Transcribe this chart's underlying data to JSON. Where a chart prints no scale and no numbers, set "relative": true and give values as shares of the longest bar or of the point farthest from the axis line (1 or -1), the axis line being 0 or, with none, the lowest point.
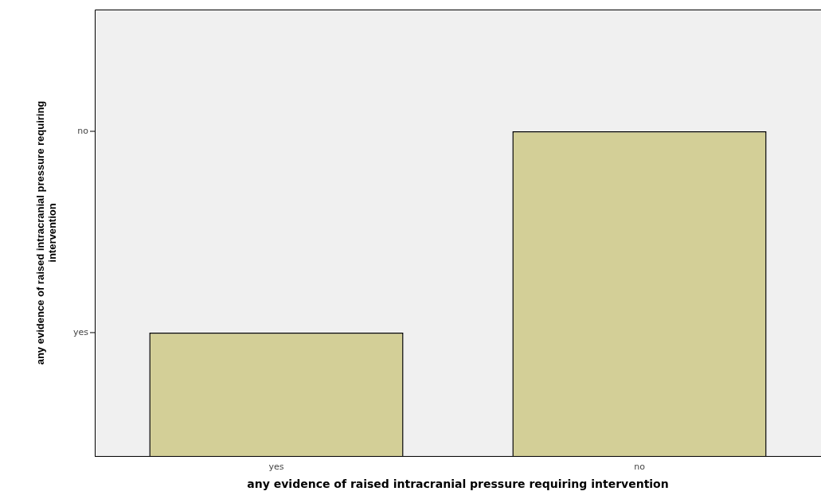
{
  "chart_data": {
    "type": "bar",
    "xlabel": "any evidence of raised intracranial pressure requiring intervention",
    "ylabel": "any evidence of raised intracranial pressure requiring intervention",
    "categories": [
      "yes",
      "no"
    ],
    "values": [
      0.38,
      1
    ],
    "color": "#d3cf97",
    "relative": true,
    "annotations": [
      "yes",
      "no"
    ],
    "grid": false,
    "legend": false
  }
}
